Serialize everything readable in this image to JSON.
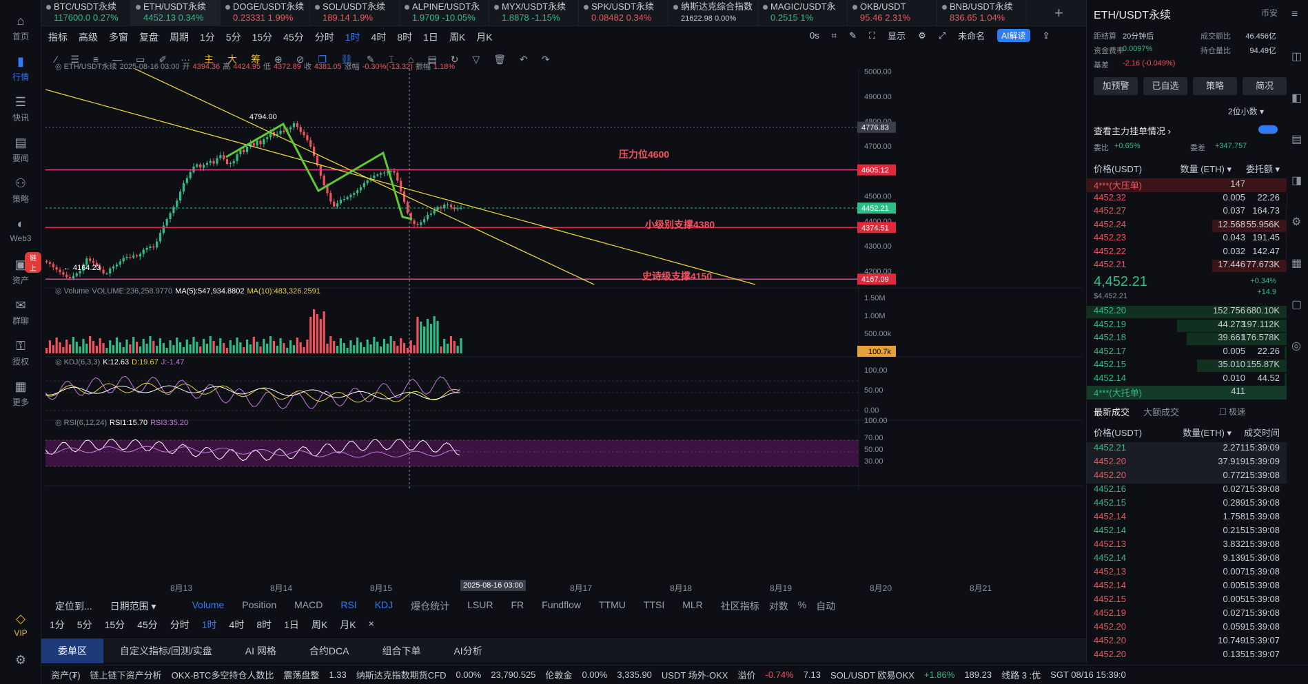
{
  "nav": [
    {
      "label": "首页",
      "icon": "home-icon"
    },
    {
      "label": "行情",
      "icon": "chart-icon",
      "active": true
    },
    {
      "label": "快讯",
      "icon": "news-icon"
    },
    {
      "label": "要闻",
      "icon": "doc-icon"
    },
    {
      "label": "策略",
      "icon": "robot-icon"
    },
    {
      "label": "Web3",
      "icon": "web3-icon"
    },
    {
      "label": "资产",
      "icon": "wallet-icon",
      "badge": "链上"
    },
    {
      "label": "群聊",
      "icon": "chat-icon"
    },
    {
      "label": "授权",
      "icon": "key-icon"
    },
    {
      "label": "更多",
      "icon": "grid-icon"
    }
  ],
  "vip_label": "VIP",
  "tabs": [
    {
      "sym": "BTC/USDT永续",
      "price": "117600.0",
      "chg": "0.27%",
      "dir": "up"
    },
    {
      "sym": "ETH/USDT永续",
      "price": "4452.13",
      "chg": "0.34%",
      "dir": "up",
      "active": true
    },
    {
      "sym": "DOGE/USDT永续",
      "price": "0.23331",
      "chg": "1.99%",
      "dir": "dn"
    },
    {
      "sym": "SOL/USDT永续",
      "price": "189.14",
      "chg": "1.9%",
      "dir": "dn"
    },
    {
      "sym": "ALPINE/USDT永",
      "price": "1.9709",
      "chg": "-10.05%",
      "dir": "up"
    },
    {
      "sym": "MYX/USDT永续",
      "price": "1.8878",
      "chg": "-1.15%",
      "dir": "up"
    },
    {
      "sym": "SPK/USDT永续",
      "price": "0.08482",
      "chg": "0.34%",
      "dir": "dn"
    },
    {
      "sym": "纳斯达克综合指数",
      "price": "21622.98",
      "chg": "0.00%",
      "dir": "flat"
    },
    {
      "sym": "MAGIC/USDT永",
      "price": "0.2515",
      "chg": "1%",
      "dir": "up"
    },
    {
      "sym": "OKB/USDT",
      "price": "95.46",
      "chg": "2.31%",
      "dir": "dn"
    },
    {
      "sym": "BNB/USDT永续",
      "price": "836.65",
      "chg": "1.04%",
      "dir": "dn"
    }
  ],
  "toolbar1": [
    "指标",
    "高级",
    "多窗",
    "复盘",
    "周期",
    "1分",
    "5分",
    "15分",
    "45分",
    "分时",
    "1时",
    "4时",
    "8时",
    "1日",
    "周K",
    "月K"
  ],
  "toolbar1_selected": "1时",
  "toolbar_right": {
    "countdown": "0s",
    "show": "显示",
    "unnamed": "未命名",
    "ai": "AI解读"
  },
  "toolbar2": [
    "主",
    "大",
    "筹"
  ],
  "chart_header": {
    "symbol": "ETH/USDT永续",
    "date": "2025-08-16 03:00",
    "open_label": "开",
    "open": "4394.36",
    "high_label": "高",
    "high": "4424.95",
    "low_label": "低",
    "low": "4372.89",
    "close_label": "收",
    "close": "4381.05",
    "chg_label": "涨幅",
    "chg": "-0.30%(-13.32)",
    "amp_label": "振幅",
    "amp": "1.18%"
  },
  "volume_header": {
    "label": "Volume",
    "vol": "VOLUME:236,258.9770",
    "ma5": "MA(5):547,934.8802",
    "ma10": "MA(10):483,326.2591"
  },
  "kdj_header": {
    "label": "KDJ(6,3,3)",
    "k": "K:12.63",
    "d": "D:19.67",
    "j": "J:-1.47"
  },
  "rsi_header": {
    "label": "RSI(6,12,24)",
    "r1": "RSI1:15.70",
    "r3": "RSI3:35.20"
  },
  "annotations": {
    "resistance": "压力位4600",
    "minor_support": "小级别支撑4380",
    "major_support": "史诗级支撑4150",
    "high_mark": "4794.00",
    "low_mark": "4164.23"
  },
  "price_tags": {
    "t1": "4776.83",
    "t2": "4605.12",
    "t3": "4452.21",
    "t4": "4374.51",
    "t5": "4167.09",
    "vol": "100.7k"
  },
  "chart_data": {
    "type": "candlestick",
    "yaxis_price": [
      "5000.00",
      "4900.00",
      "4800.00",
      "4700.00",
      "4600.00",
      "4500.00",
      "4400.00",
      "4300.00",
      "4200.00"
    ],
    "ylim_price": [
      4140,
      5010
    ],
    "yaxis_volume": [
      "1.50M",
      "1.00M",
      "500.00k"
    ],
    "yaxis_kdj": [
      "100.00",
      "50.00",
      "0.00"
    ],
    "yaxis_rsi": [
      "100.00",
      "70.00",
      "50.00",
      "30.00"
    ],
    "xaxis": [
      "8月13",
      "8月14",
      "8月15",
      "8月17",
      "8月18",
      "8月19",
      "8月20",
      "8月21"
    ],
    "cursor_label": "2025-08-16 03:00",
    "closes": [
      4235,
      4228,
      4215,
      4205,
      4195,
      4185,
      4175,
      4170,
      4180,
      4190,
      4200,
      4225,
      4250,
      4240,
      4232,
      4218,
      4205,
      4190,
      4190,
      4210,
      4218,
      4225,
      4238,
      4252,
      4256,
      4254,
      4262,
      4258,
      4268,
      4285,
      4292,
      4298,
      4294,
      4318,
      4352,
      4382,
      4408,
      4432,
      4456,
      4482,
      4518,
      4552,
      4572,
      4596,
      4618,
      4627,
      4614,
      4625,
      4633,
      4641,
      4630,
      4652,
      4664,
      4648,
      4629,
      4632,
      4641,
      4668,
      4685,
      4676,
      4698,
      4712,
      4702,
      4722,
      4708,
      4728,
      4736,
      4756,
      4742,
      4749,
      4762,
      4756,
      4768,
      4776,
      4792,
      4778,
      4757,
      4744,
      4724,
      4698,
      4662,
      4623,
      4582,
      4543,
      4512,
      4478,
      4458,
      4471,
      4485,
      4488,
      4496,
      4505,
      4512,
      4523,
      4536,
      4552,
      4563,
      4572,
      4582,
      4586,
      4592,
      4594,
      4597,
      4601,
      4594,
      4561,
      4519,
      4476,
      4432,
      4402,
      4388,
      4384,
      4395,
      4408,
      4425,
      4430,
      4443,
      4456,
      4451,
      4466,
      4466,
      4455,
      4448,
      4452,
      4452
    ]
  },
  "indtabs": [
    "Volume",
    "Position",
    "MACD",
    "RSI",
    "KDJ",
    "爆仓统计",
    "LSUR",
    "FR",
    "Fundflow",
    "TTMU",
    "TTSI",
    "MLR"
  ],
  "indtabs_sel": [
    "Volume",
    "RSI",
    "KDJ"
  ],
  "indtabs_right": [
    "社区指标",
    "对数",
    "%",
    "自动"
  ],
  "bottom_left": {
    "locate": "定位到...",
    "range": "日期范围"
  },
  "periods": [
    "1分",
    "5分",
    "15分",
    "45分",
    "分时",
    "1时",
    "4时",
    "8时",
    "1日",
    "周K",
    "月K"
  ],
  "bottombar": [
    "委单区",
    "自定义指标/回测/实盘",
    "AI 网格",
    "合约DCA",
    "组合下单",
    "AI分析"
  ],
  "statusbar": [
    {
      "t": "资产(₮)",
      "c": "#c8ccd4"
    },
    {
      "t": "链上链下资产分析",
      "c": "#c8ccd4"
    },
    {
      "t": "OKX-BTC多空持仓人数比",
      "c": "#c8ccd4"
    },
    {
      "t": "震荡盘整",
      "c": "#c8ccd4"
    },
    {
      "t": "1.33",
      "c": "#c8ccd4"
    },
    {
      "t": "纳斯达克指数期货CFD",
      "c": "#c8ccd4"
    },
    {
      "t": "0.00%",
      "c": "#c8ccd4"
    },
    {
      "t": "23,790.525",
      "c": "#c8ccd4"
    },
    {
      "t": "伦敦金",
      "c": "#c8ccd4"
    },
    {
      "t": "0.00%",
      "c": "#c8ccd4"
    },
    {
      "t": "3,335.90",
      "c": "#c8ccd4"
    },
    {
      "t": "USDT 场外-OKX",
      "c": "#c8ccd4"
    },
    {
      "t": "溢价",
      "c": "#c8ccd4"
    },
    {
      "t": "-0.74%",
      "c": "#f0535e"
    },
    {
      "t": "7.13",
      "c": "#c8ccd4"
    },
    {
      "t": "SOL/USDT 欧易OKX",
      "c": "#c8ccd4"
    },
    {
      "t": "+1.86%",
      "c": "#2ebd85"
    },
    {
      "t": "189.23",
      "c": "#c8ccd4"
    },
    {
      "t": "线路 3 :优",
      "c": "#c8ccd4"
    },
    {
      "t": "SGT 08/16 15:39:0",
      "c": "#c8ccd4"
    }
  ],
  "rp": {
    "title": "ETH/USDT永续",
    "exchange": "币安",
    "settle_label": "距结算",
    "settle": "20分钟后",
    "turnover_label": "成交额比",
    "turnover": "46.456亿",
    "fee_label": "资金费率",
    "fee": "0.0097%",
    "oi_label": "持仓量比",
    "oi": "94.49亿",
    "basis_label": "基差",
    "basis": "-2.16 (-0.049%)",
    "buttons": [
      "加预警",
      "已自选",
      "策略",
      "简况"
    ],
    "decimals": "2位小数",
    "mainorders": "查看主力挂单情况",
    "wb_label": "委比",
    "wb": "+0.65%",
    "wc_label": "委差",
    "wc": "+347.757",
    "ob_head": [
      "价格(USDT)",
      "数量 (ETH)",
      "委托额"
    ],
    "asks": [
      [
        "4***(大压单)",
        "147",
        ""
      ],
      [
        "4452.32",
        "0.005",
        "22.26"
      ],
      [
        "4452.27",
        "0.037",
        "164.73"
      ],
      [
        "4452.24",
        "12.568",
        "55.956K"
      ],
      [
        "4452.23",
        "0.043",
        "191.45"
      ],
      [
        "4452.22",
        "0.032",
        "142.47"
      ],
      [
        "4452.21",
        "17.446",
        "77.673K"
      ]
    ],
    "ask_fill": [
      0,
      0.003,
      0.005,
      0.9,
      0.006,
      0.005,
      0.9
    ],
    "last_price": "4,452.21",
    "last_sub": "$4,452.21",
    "last_pct": "+0.34%",
    "last_chg": "+14.9",
    "bids": [
      [
        "4452.20",
        "152.756",
        "680.10K"
      ],
      [
        "4452.19",
        "44.273",
        "197.112K"
      ],
      [
        "4452.18",
        "39.661",
        "176.578K"
      ],
      [
        "4452.17",
        "0.005",
        "22.26"
      ],
      [
        "4452.15",
        "35.010",
        "155.87K"
      ],
      [
        "4452.14",
        "0.010",
        "44.52"
      ],
      [
        "4***(大托单)",
        "411",
        ""
      ]
    ],
    "bid_fill": [
      1,
      0.55,
      0.5,
      0.01,
      0.45,
      0.01,
      0
    ],
    "trades_tabs": [
      "最新成交",
      "大额成交",
      "极速"
    ],
    "trades_head": [
      "价格(USDT)",
      "数量(ETH)",
      "成交时间"
    ],
    "trades": [
      [
        "4452.21",
        "2.271",
        "15:39:09",
        "up"
      ],
      [
        "4452.20",
        "37.919",
        "15:39:09",
        "dn"
      ],
      [
        "4452.20",
        "0.772",
        "15:39:08",
        "dn"
      ],
      [
        "4452.16",
        "0.027",
        "15:39:08",
        "up"
      ],
      [
        "4452.15",
        "0.289",
        "15:39:08",
        "up"
      ],
      [
        "4452.14",
        "1.758",
        "15:39:08",
        "dn"
      ],
      [
        "4452.14",
        "0.215",
        "15:39:08",
        "up"
      ],
      [
        "4452.13",
        "3.832",
        "15:39:08",
        "dn"
      ],
      [
        "4452.14",
        "9.139",
        "15:39:08",
        "up"
      ],
      [
        "4452.13",
        "0.007",
        "15:39:08",
        "dn"
      ],
      [
        "4452.14",
        "0.005",
        "15:39:08",
        "dn"
      ],
      [
        "4452.15",
        "0.005",
        "15:39:08",
        "dn"
      ],
      [
        "4452.19",
        "0.027",
        "15:39:08",
        "dn"
      ],
      [
        "4452.20",
        "0.059",
        "15:39:08",
        "dn"
      ],
      [
        "4452.20",
        "10.749",
        "15:39:07",
        "dn"
      ],
      [
        "4452.20",
        "0.135",
        "15:39:07",
        "dn"
      ]
    ]
  }
}
